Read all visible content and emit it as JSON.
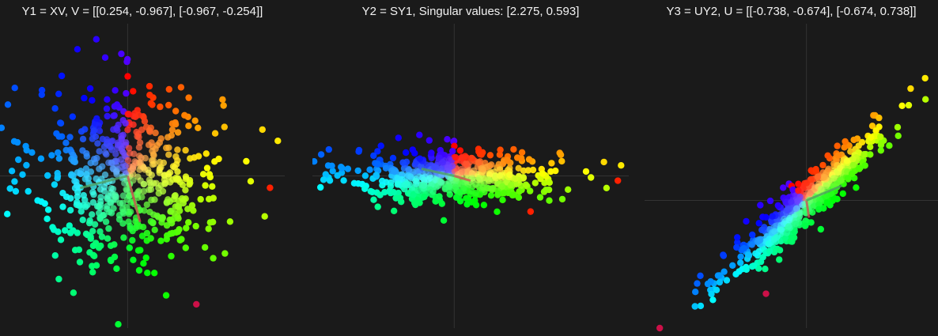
{
  "figure": {
    "background": "#1a1a1a",
    "axis_color": "#333333"
  },
  "chart_data": [
    {
      "type": "scatter",
      "title": "Y1 = XV, V = [[0.254, -0.967], [-0.967, -0.254]]",
      "xlim": [
        -2.6,
        3.2
      ],
      "ylim": [
        -3.2,
        3.2
      ],
      "transform": [
        [
          1,
          0
        ],
        [
          0,
          1
        ]
      ],
      "n_points": 600,
      "point_radius": 4.2,
      "vectors": [
        {
          "x": 0.254,
          "y": -0.967,
          "color": "#d05050"
        },
        {
          "x": -0.967,
          "y": -0.254,
          "color": "#4fa060"
        }
      ],
      "outliers": [
        [
          2.9,
          -0.25
        ],
        [
          1.4,
          -2.7
        ]
      ],
      "grid": false,
      "legend": "none"
    },
    {
      "type": "scatter",
      "title": "Y2 = SY1, Singular values: [2.275, 0.593]",
      "xlim": [
        -2.6,
        3.2
      ],
      "ylim": [
        -3.2,
        3.2
      ],
      "transform": [
        [
          1,
          0
        ],
        [
          0,
          0.3
        ]
      ],
      "n_points": 600,
      "point_radius": 4.2,
      "vectors": [
        {
          "x": 0.3,
          "y": -0.1,
          "color": "#d05050"
        },
        {
          "x": -0.6,
          "y": 0.15,
          "color": "#4fa060"
        }
      ],
      "outliers": [
        [
          3.0,
          -0.1
        ],
        [
          1.4,
          -0.75
        ]
      ],
      "grid": false,
      "legend": "none"
    },
    {
      "type": "scatter",
      "title": "Y3 = UY2, U = [[-0.738, -0.674], [-0.674, 0.738]]",
      "xlim": [
        -3.2,
        2.6
      ],
      "ylim": [
        -2.6,
        3.6
      ],
      "transform": [
        [
          0.8,
          -0.14
        ],
        [
          0.78,
          0.14
        ]
      ],
      "n_points": 600,
      "point_radius": 4.2,
      "vectors": [
        {
          "x": 0.05,
          "y": -0.35,
          "color": "#d05050"
        },
        {
          "x": 0.7,
          "y": 0.3,
          "color": "#4fa060"
        }
      ],
      "outliers": [
        [
          -2.9,
          -2.6
        ],
        [
          -0.8,
          -1.9
        ]
      ],
      "grid": false,
      "legend": "none"
    }
  ]
}
